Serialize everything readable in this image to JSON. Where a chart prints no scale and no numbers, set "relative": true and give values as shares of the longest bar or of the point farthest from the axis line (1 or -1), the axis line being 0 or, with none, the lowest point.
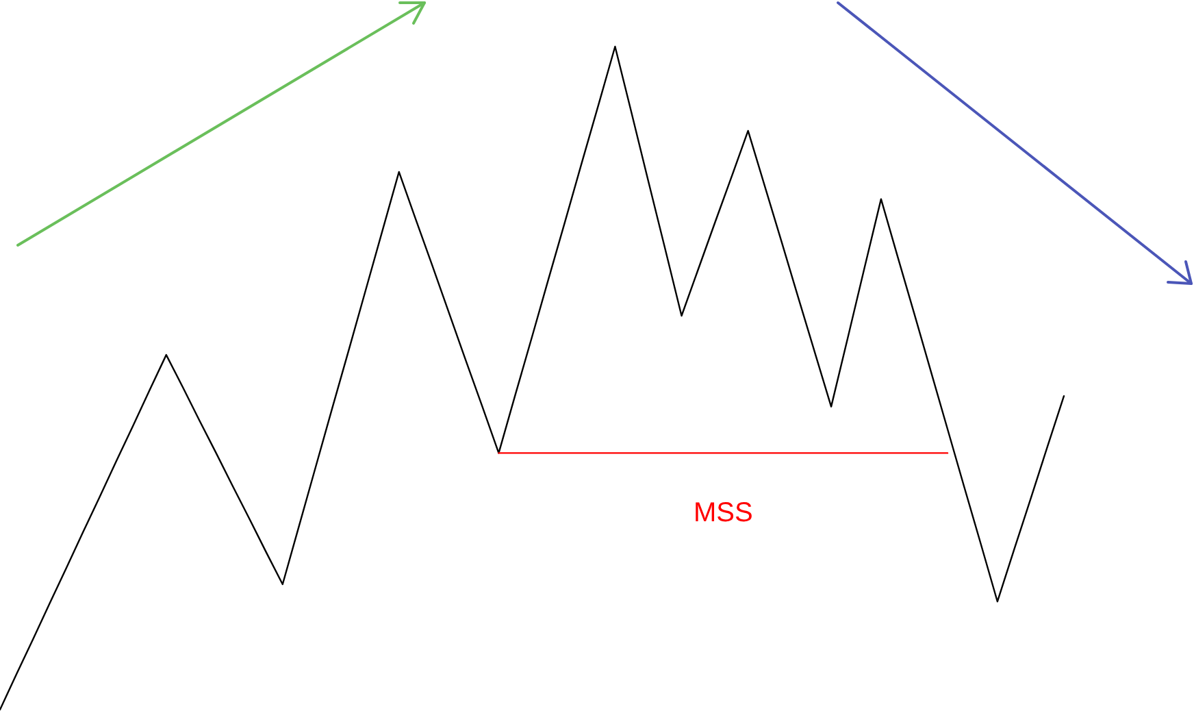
{
  "chart_data": {
    "type": "line",
    "relative": true,
    "categories": [
      null,
      null,
      null,
      null,
      null,
      null,
      null,
      null,
      null,
      null,
      null,
      null,
      null,
      null,
      null,
      null,
      null,
      null,
      null,
      null,
      null,
      null,
      null,
      null,
      null,
      null,
      null,
      null,
      null,
      null,
      null,
      null,
      null,
      null,
      null,
      null,
      null,
      null,
      null,
      null,
      null,
      null,
      null,
      null,
      null,
      null,
      null,
      null,
      null,
      null,
      null,
      null,
      null,
      null,
      null,
      null,
      null,
      null,
      null,
      null,
      null,
      null,
      null,
      null,
      null
    ],
    "series": [
      {
        "color": "#000000",
        "values": [
          0,
          0.054,
          0.107,
          0.161,
          0.214,
          0.268,
          0.321,
          0.375,
          0.428,
          0.482,
          0.535,
          0.486,
          0.436,
          0.387,
          0.337,
          0.288,
          0.238,
          0.189,
          0.278,
          0.367,
          0.456,
          0.544,
          0.633,
          0.722,
          0.811,
          0.74,
          0.67,
          0.599,
          0.528,
          0.458,
          0.387,
          0.475,
          0.562,
          0.65,
          0.737,
          0.825,
          0.912,
          1,
          0.899,
          0.797,
          0.696,
          0.594,
          0.664,
          0.734,
          0.803,
          0.873,
          0.79,
          0.707,
          0.623,
          0.54,
          0.457,
          0.561,
          0.666,
          0.77,
          0.683,
          0.597,
          0.51,
          0.423,
          0.336,
          0.25,
          0.163,
          0.241,
          0.318,
          0.396,
          0.473
        ]
      },
      {
        "name": "MSS",
        "type": "line",
        "color": "#ff0000",
        "values": [
          null,
          null,
          null,
          null,
          null,
          null,
          null,
          null,
          null,
          null,
          null,
          null,
          null,
          null,
          null,
          null,
          null,
          null,
          null,
          null,
          null,
          null,
          null,
          null,
          null,
          null,
          null,
          null,
          null,
          null,
          0.387,
          0.387,
          0.387,
          0.387,
          0.387,
          0.387,
          0.387,
          0.387,
          0.387,
          0.387,
          0.387,
          0.387,
          0.387,
          0.387,
          0.387,
          0.387,
          0.387,
          0.387,
          0.387,
          0.387,
          0.387,
          0.387,
          0.387,
          0.387,
          0.387,
          0.387,
          0.387,
          0.387,
          null,
          null,
          null,
          null,
          null,
          null,
          null
        ]
      }
    ]
  }
}
